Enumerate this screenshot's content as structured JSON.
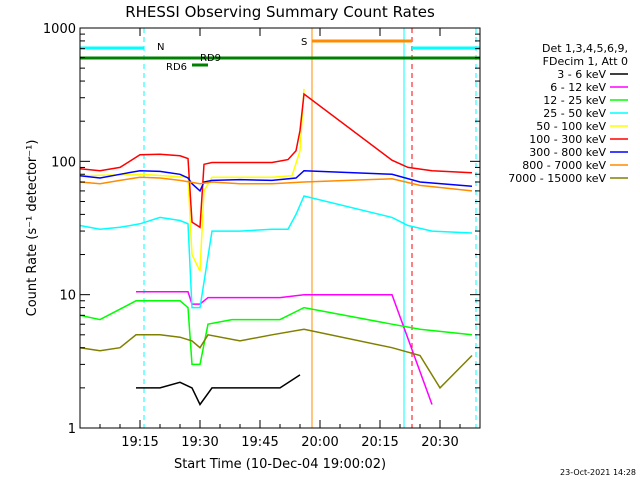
{
  "chart_data": {
    "type": "line",
    "title": "RHESSI Observing Summary Count Rates",
    "xlabel": "Start Time (10-Dec-04 19:00:02)",
    "ylabel": "Count Rate (s⁻¹ detector⁻¹)",
    "xlim": [
      "19:00",
      "20:40"
    ],
    "ylim": [
      1,
      1000
    ],
    "y_scale": "log",
    "x_ticks": [
      "19:15",
      "19:30",
      "19:45",
      "20:00",
      "20:15",
      "20:30"
    ],
    "y_ticks": [
      "1",
      "10",
      "100",
      "1000"
    ],
    "legend_title": [
      "Det 1,3,4,5,6,9,",
      "FDecim 1, Att 0"
    ],
    "legend_position": "right",
    "series": [
      {
        "name": "3 - 6 keV",
        "color": "#000000",
        "x": [
          "19:14",
          "19:20",
          "19:25",
          "19:28",
          "19:30",
          "19:33",
          "19:38",
          "19:45",
          "19:50",
          "19:55"
        ],
        "values": [
          2,
          2,
          2.2,
          2,
          1.5,
          2,
          2,
          2,
          2,
          2.5
        ]
      },
      {
        "name": "6 - 12 keV",
        "color": "#ff00ff",
        "x": [
          "19:14",
          "19:20",
          "19:27",
          "19:28",
          "19:30",
          "19:32",
          "19:40",
          "19:50",
          "19:56",
          "20:18",
          "20:28"
        ],
        "values": [
          10.5,
          10.5,
          10.5,
          8.5,
          8.5,
          9.5,
          9.5,
          9.5,
          10,
          10,
          1.5
        ]
      },
      {
        "name": "12 - 25 keV",
        "color": "#00ff00",
        "x": [
          "19:00",
          "19:05",
          "19:14",
          "19:20",
          "19:25",
          "19:27",
          "19:28",
          "19:30",
          "19:32",
          "19:38",
          "19:45",
          "19:50",
          "19:56",
          "20:18",
          "20:25",
          "20:38"
        ],
        "values": [
          7,
          6.5,
          9,
          9,
          9,
          8,
          3,
          3,
          6,
          6.5,
          6.5,
          6.5,
          8,
          6,
          5.5,
          5
        ]
      },
      {
        "name": "25 - 50 keV",
        "color": "#00ffff",
        "x": [
          "19:00",
          "19:05",
          "19:10",
          "19:15",
          "19:20",
          "19:25",
          "19:27",
          "19:28",
          "19:30",
          "19:33",
          "19:40",
          "19:48",
          "19:52",
          "19:54",
          "19:56",
          "20:18",
          "20:22",
          "20:28",
          "20:38"
        ],
        "values": [
          33,
          31,
          32,
          34,
          38,
          36,
          34,
          8,
          8,
          30,
          30,
          31,
          31,
          40,
          55,
          38,
          33,
          30,
          29
        ]
      },
      {
        "name": "50 - 100 keV",
        "color": "#ffff00",
        "x": [
          "19:00",
          "19:15",
          "19:27",
          "19:28",
          "19:30",
          "19:31",
          "19:33",
          "19:48",
          "19:53",
          "19:55",
          "19:56"
        ],
        "values": [
          78,
          80,
          76,
          20,
          15,
          60,
          76,
          76,
          78,
          120,
          350
        ]
      },
      {
        "name": "100 - 300 keV",
        "color": "#ff0000",
        "x": [
          "19:00",
          "19:05",
          "19:10",
          "19:15",
          "19:20",
          "19:25",
          "19:27",
          "19:28",
          "19:30",
          "19:31",
          "19:33",
          "19:40",
          "19:48",
          "19:52",
          "19:54",
          "19:55",
          "19:56",
          "20:18",
          "20:22",
          "20:28",
          "20:38"
        ],
        "values": [
          88,
          85,
          90,
          112,
          113,
          110,
          105,
          35,
          32,
          95,
          98,
          98,
          98,
          103,
          120,
          170,
          320,
          102,
          90,
          85,
          82
        ]
      },
      {
        "name": "300 - 800 keV",
        "color": "#0000ff",
        "x": [
          "19:00",
          "19:05",
          "19:10",
          "19:15",
          "19:20",
          "19:25",
          "19:27",
          "19:28",
          "19:30",
          "19:31",
          "19:33",
          "19:40",
          "19:48",
          "19:54",
          "19:56",
          "20:18",
          "20:25",
          "20:38"
        ],
        "values": [
          78,
          75,
          80,
          85,
          84,
          80,
          75,
          68,
          60,
          70,
          72,
          73,
          72,
          75,
          85,
          80,
          70,
          65
        ]
      },
      {
        "name": "800 - 7000 keV",
        "color": "#ff8c00",
        "x": [
          "19:00",
          "19:05",
          "19:10",
          "19:15",
          "19:20",
          "19:25",
          "19:30",
          "19:33",
          "19:40",
          "19:48",
          "19:56",
          "20:18",
          "20:25",
          "20:38"
        ],
        "values": [
          70,
          68,
          72,
          76,
          75,
          72,
          68,
          70,
          68,
          68,
          70,
          74,
          66,
          60
        ]
      },
      {
        "name": "7000 - 15000 keV",
        "color": "#808000",
        "x": [
          "19:00",
          "19:05",
          "19:10",
          "19:14",
          "19:20",
          "19:25",
          "19:28",
          "19:30",
          "19:32",
          "19:40",
          "19:48",
          "19:56",
          "20:18",
          "20:25",
          "20:30",
          "20:38"
        ],
        "values": [
          4,
          3.8,
          4,
          5,
          5,
          4.8,
          4.5,
          4,
          5,
          4.5,
          5,
          5.5,
          4,
          3.5,
          2,
          3.5
        ]
      }
    ],
    "markers": {
      "N": {
        "label": "N",
        "color": "#00ffff",
        "intervals": [
          [
            "19:00",
            "19:16"
          ],
          [
            "20:23",
            "20:40"
          ]
        ]
      },
      "S": {
        "label": "S",
        "color": "#ff8c00",
        "intervals": [
          [
            "19:58",
            "20:23"
          ]
        ]
      },
      "RD6": {
        "label": "RD6",
        "color": "#008000",
        "interval": [
          "19:28",
          "19:32"
        ]
      },
      "RD9": {
        "label": "RD9",
        "color": "#008000"
      },
      "flag_line_color": "#008000"
    },
    "vertical_lines": [
      {
        "time": "19:00",
        "color": "#00ffff",
        "style": "solid"
      },
      {
        "time": "19:16",
        "color": "#00ffff",
        "style": "dashed"
      },
      {
        "time": "19:58",
        "color": "#ff8c00",
        "style": "solid"
      },
      {
        "time": "20:21",
        "color": "#00ffff",
        "style": "solid"
      },
      {
        "time": "20:23",
        "color": "#ff0000",
        "style": "dashed"
      },
      {
        "time": "20:39",
        "color": "#00ffff",
        "style": "dashed"
      }
    ]
  },
  "footer": {
    "timestamp": "23-Oct-2021 14:28"
  }
}
